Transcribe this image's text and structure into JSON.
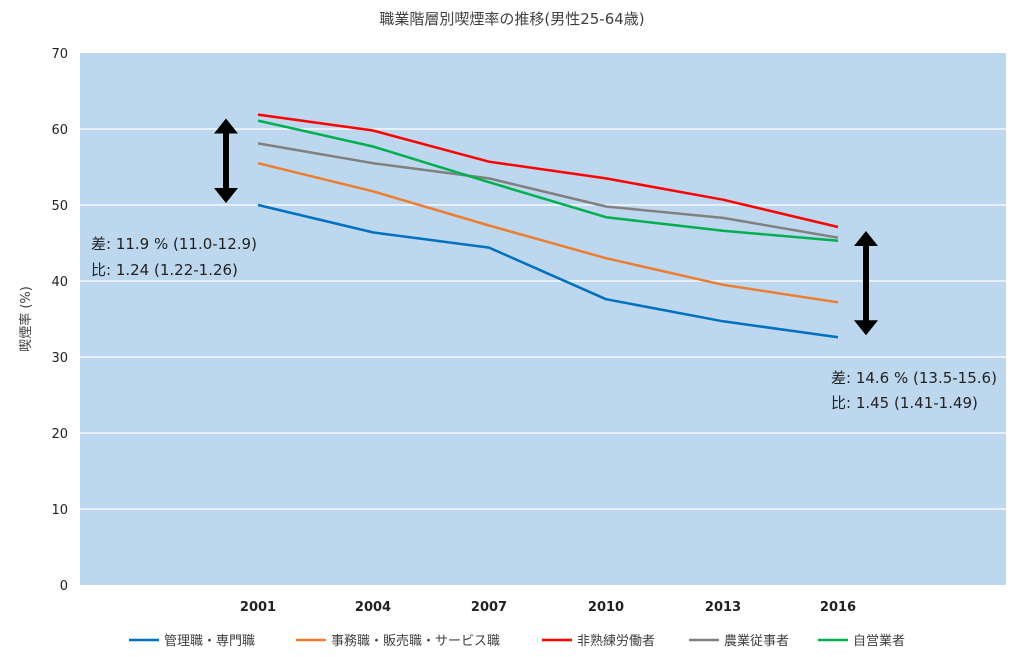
{
  "chart_data": {
    "type": "line",
    "title": "職業階層別喫煙率の推移(男性25-64歳)",
    "ylabel": "喫煙率 (%)",
    "xlabel": "",
    "x": [
      "2001",
      "2004",
      "2007",
      "2010",
      "2013",
      "2016"
    ],
    "ylim": [
      0,
      70
    ],
    "yticks": [
      0,
      10,
      20,
      30,
      40,
      50,
      60,
      70
    ],
    "grid": true,
    "legend_position": "bottom",
    "plot_background": "#bdd7ee",
    "series": [
      {
        "name": "管理職・専門職",
        "color": "#0070c0",
        "values": [
          50.0,
          46.4,
          44.4,
          37.6,
          34.7,
          32.6
        ]
      },
      {
        "name": "事務職・販売職・サービス職",
        "color": "#ed7d31",
        "values": [
          55.5,
          51.8,
          47.3,
          43.0,
          39.5,
          37.2
        ]
      },
      {
        "name": "非熟練労働者",
        "color": "#ff0000",
        "values": [
          61.9,
          59.8,
          55.7,
          53.5,
          50.7,
          47.1
        ]
      },
      {
        "name": "農業従事者",
        "color": "#808080",
        "values": [
          58.1,
          55.5,
          53.5,
          49.8,
          48.3,
          45.7
        ]
      },
      {
        "name": "自営業者",
        "color": "#00b050",
        "values": [
          61.1,
          57.7,
          53.0,
          48.4,
          46.6,
          45.3
        ]
      }
    ],
    "annotations": [
      {
        "line1": "差: 11.9 % (11.0-12.9)",
        "line2": "比: 1.24 (1.22-1.26)",
        "arrow_from": 61.9,
        "arrow_to": 50.0
      },
      {
        "line1": "差: 14.6 % (13.5-15.6)",
        "line2": "比: 1.45 (1.41-1.49)",
        "arrow_from": 47.1,
        "arrow_to": 32.6
      }
    ]
  }
}
